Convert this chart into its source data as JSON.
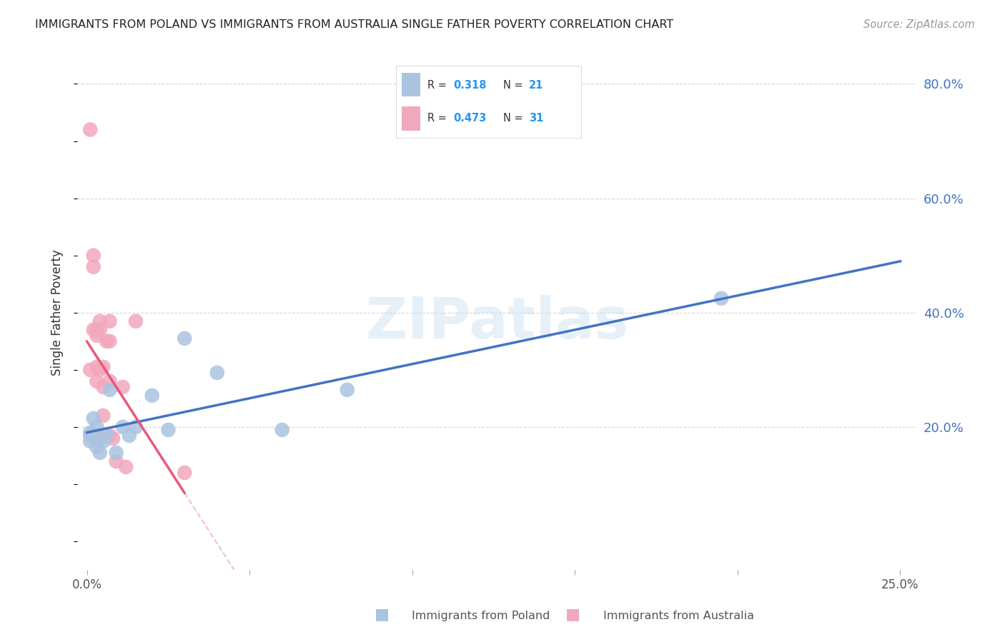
{
  "title": "IMMIGRANTS FROM POLAND VS IMMIGRANTS FROM AUSTRALIA SINGLE FATHER POVERTY CORRELATION CHART",
  "source": "Source: ZipAtlas.com",
  "ylabel": "Single Father Poverty",
  "xlim": [
    -0.003,
    0.255
  ],
  "ylim": [
    -0.05,
    0.85
  ],
  "xtick_positions": [
    0.0,
    0.05,
    0.1,
    0.15,
    0.2,
    0.25
  ],
  "xtick_labels": [
    "0.0%",
    "",
    "",
    "",
    "",
    "25.0%"
  ],
  "ytick_values_right": [
    0.2,
    0.4,
    0.6,
    0.8
  ],
  "ytick_labels_right": [
    "20.0%",
    "40.0%",
    "60.0%",
    "80.0%"
  ],
  "poland_R": 0.318,
  "poland_N": 21,
  "australia_R": 0.473,
  "australia_N": 31,
  "poland_color": "#aac4e0",
  "australia_color": "#f2a8bc",
  "poland_line_color": "#4472c4",
  "australia_line_color": "#e8587a",
  "trendline_dashed_color": "#f0b8c8",
  "legend_R_color": "#2196F3",
  "legend_N_color": "#2196F3",
  "background_color": "#ffffff",
  "grid_color": "#cccccc",
  "poland_x": [
    0.001,
    0.001,
    0.002,
    0.002,
    0.003,
    0.003,
    0.004,
    0.005,
    0.006,
    0.007,
    0.009,
    0.011,
    0.013,
    0.015,
    0.02,
    0.025,
    0.03,
    0.04,
    0.06,
    0.08,
    0.195
  ],
  "poland_y": [
    0.19,
    0.175,
    0.215,
    0.185,
    0.2,
    0.165,
    0.155,
    0.175,
    0.185,
    0.265,
    0.155,
    0.2,
    0.185,
    0.2,
    0.255,
    0.195,
    0.355,
    0.295,
    0.195,
    0.265,
    0.425
  ],
  "australia_x": [
    0.001,
    0.001,
    0.001,
    0.002,
    0.002,
    0.002,
    0.002,
    0.003,
    0.003,
    0.003,
    0.003,
    0.003,
    0.004,
    0.004,
    0.004,
    0.004,
    0.005,
    0.005,
    0.005,
    0.006,
    0.006,
    0.007,
    0.007,
    0.007,
    0.007,
    0.008,
    0.009,
    0.011,
    0.012,
    0.015,
    0.03
  ],
  "australia_y": [
    0.72,
    0.3,
    0.185,
    0.5,
    0.48,
    0.37,
    0.185,
    0.37,
    0.36,
    0.305,
    0.28,
    0.18,
    0.385,
    0.37,
    0.3,
    0.185,
    0.305,
    0.27,
    0.22,
    0.35,
    0.185,
    0.385,
    0.28,
    0.35,
    0.185,
    0.18,
    0.14,
    0.27,
    0.13,
    0.385,
    0.12
  ]
}
